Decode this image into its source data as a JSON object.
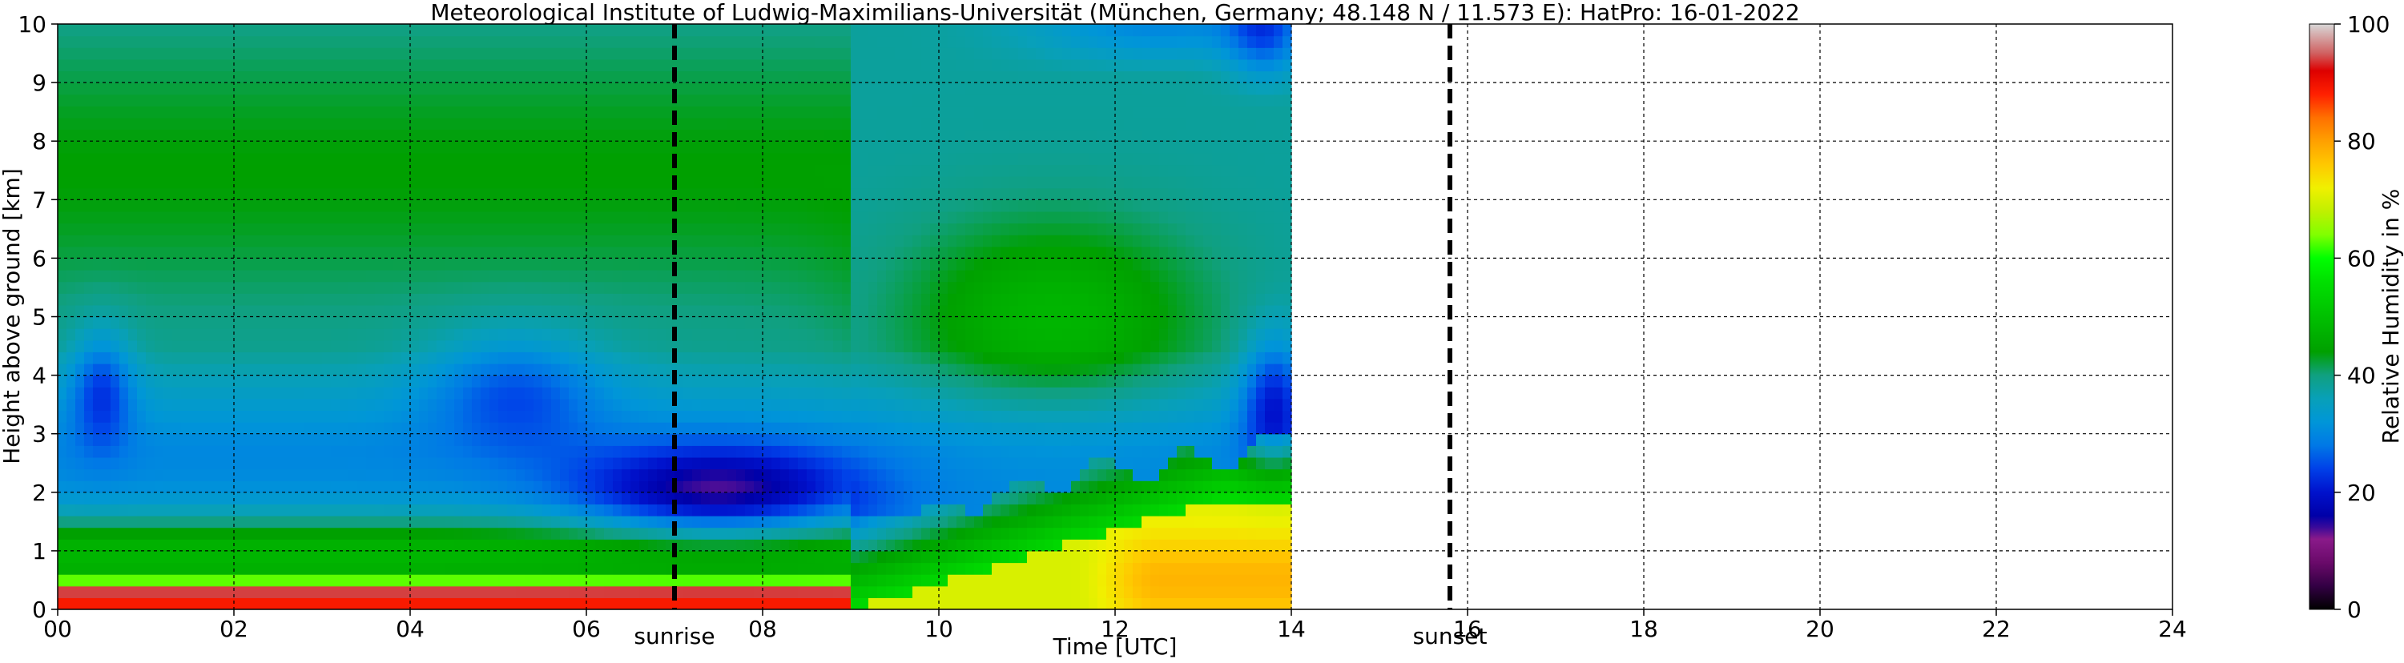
{
  "chart_data": {
    "type": "heatmap",
    "title": "Meteorological Institute of Ludwig-Maximilians-Universität (München, Germany; 48.148 N / 11.573 E):    HatPro: 16-01-2022",
    "xlabel": "Time [UTC]",
    "ylabel": "Height above ground [km]",
    "xlim": [
      0,
      24
    ],
    "ylim": [
      0,
      10
    ],
    "x_ticks": [
      "00",
      "02",
      "04",
      "06",
      "08",
      "10",
      "12",
      "14",
      "16",
      "18",
      "20",
      "22",
      "24"
    ],
    "y_ticks": [
      "0",
      "1",
      "2",
      "3",
      "4",
      "5",
      "6",
      "7",
      "8",
      "9",
      "10"
    ],
    "grid": true,
    "data_end_hour": 14.0,
    "markers": [
      {
        "label": "sunrise",
        "hour": 7.0
      },
      {
        "label": "sunset",
        "hour": 15.8
      }
    ],
    "colorbar": {
      "label": "Relative Humidity in %",
      "range": [
        0,
        100
      ],
      "ticks": [
        "0",
        "20",
        "40",
        "60",
        "80",
        "100"
      ],
      "stops": [
        {
          "v": 0,
          "c": "#000000"
        },
        {
          "v": 4,
          "c": "#330044"
        },
        {
          "v": 8,
          "c": "#6a0a6a"
        },
        {
          "v": 12,
          "c": "#8a1a8a"
        },
        {
          "v": 14,
          "c": "#3a0a9a"
        },
        {
          "v": 16,
          "c": "#0000a8"
        },
        {
          "v": 20,
          "c": "#0012cc"
        },
        {
          "v": 24,
          "c": "#0040e8"
        },
        {
          "v": 28,
          "c": "#0078e6"
        },
        {
          "v": 32,
          "c": "#0096d8"
        },
        {
          "v": 36,
          "c": "#08a0b8"
        },
        {
          "v": 40,
          "c": "#10a080"
        },
        {
          "v": 44,
          "c": "#00a000"
        },
        {
          "v": 50,
          "c": "#00c000"
        },
        {
          "v": 56,
          "c": "#00e000"
        },
        {
          "v": 60,
          "c": "#00ff00"
        },
        {
          "v": 64,
          "c": "#80ff00"
        },
        {
          "v": 68,
          "c": "#c0f000"
        },
        {
          "v": 72,
          "c": "#f0f000"
        },
        {
          "v": 76,
          "c": "#ffc800"
        },
        {
          "v": 80,
          "c": "#ffa000"
        },
        {
          "v": 84,
          "c": "#ff7000"
        },
        {
          "v": 88,
          "c": "#ff2000"
        },
        {
          "v": 92,
          "c": "#dd0000"
        },
        {
          "v": 95,
          "c": "#d06060"
        },
        {
          "v": 100,
          "c": "#d8d8d8"
        }
      ]
    }
  }
}
